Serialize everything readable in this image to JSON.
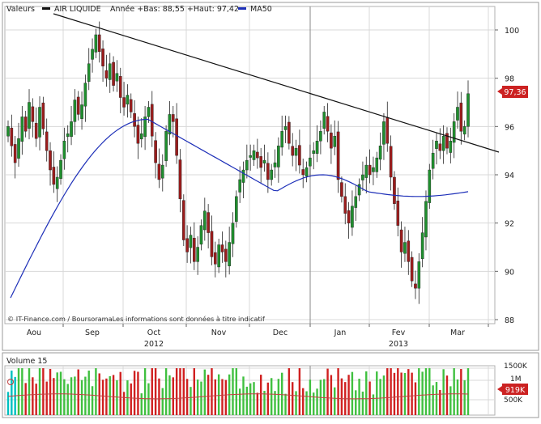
{
  "legend": {
    "valeurs_label": "Valeurs",
    "instrument": "AIR LIQUIDE",
    "range_text": "Année +Bas: 88,55 +Haut: 97,42",
    "ma_label": "MA50"
  },
  "colors": {
    "up": "#1f8f2e",
    "down": "#9b1c1c",
    "ma_line": "#1d2fb8",
    "trend_line": "#111111",
    "vol_up": "#40c040",
    "vol_down": "#d02020",
    "vol_flat": "#00c0c0",
    "vol_ma": "#c04040",
    "grid": "#d8d8d8",
    "badge": "#cc2222"
  },
  "last_price_label": "97,36",
  "footer": {
    "source": "© IT-Finance.com / BoursoramaLes informations sont données à titre indicatif"
  },
  "volume": {
    "label": "Volume 15",
    "badge": "919K",
    "ticks": [
      "1500K",
      "1M",
      "500K"
    ]
  },
  "chart_data": [
    {
      "type": "candlestick",
      "title": "AIR LIQUIDE",
      "ylim": [
        88,
        101
      ],
      "y_ticks": [
        88,
        90,
        92,
        94,
        96,
        98,
        100
      ],
      "x_labels": [
        "Aou",
        "Sep",
        "Oct",
        "Nov",
        "Dec",
        "Jan",
        "Fev",
        "Mar"
      ],
      "year_labels": [
        "2012",
        "2013"
      ],
      "grid": true,
      "last_value": 97.36,
      "low": 88.55,
      "high": 97.42,
      "close_series": [
        96.0,
        95.2,
        94.5,
        95.5,
        96.4,
        95.8,
        97.0,
        96.2,
        95.5,
        96.8,
        95.9,
        95.0,
        94.2,
        93.6,
        93.9,
        94.6,
        95.4,
        95.7,
        96.2,
        97.1,
        96.5,
        96.9,
        97.8,
        98.6,
        99.2,
        99.8,
        99.1,
        98.5,
        98.0,
        98.6,
        97.7,
        98.2,
        97.2,
        96.8,
        97.3,
        96.6,
        96.0,
        95.3,
        95.7,
        96.4,
        96.8,
        95.6,
        94.5,
        93.8,
        94.4,
        95.8,
        96.5,
        96.2,
        94.8,
        93.0,
        91.3,
        90.8,
        91.5,
        90.4,
        91.0,
        91.9,
        92.5,
        91.6,
        90.6,
        90.3,
        91.1,
        90.8,
        90.4,
        91.2,
        92.0,
        93.1,
        93.8,
        94.2,
        94.6,
        94.8,
        95.0,
        94.7,
        94.3,
        94.6,
        93.8,
        94.2,
        94.5,
        95.2,
        95.8,
        96.0,
        95.3,
        94.8,
        95.1,
        94.4,
        94.0,
        94.3,
        94.7,
        95.0,
        95.4,
        95.8,
        96.6,
        95.8,
        95.1,
        95.6,
        93.8,
        93.1,
        92.4,
        92.0,
        92.7,
        93.1,
        93.6,
        94.0,
        94.4,
        94.0,
        94.3,
        94.7,
        95.2,
        96.2,
        95.3,
        93.9,
        92.8,
        91.9,
        90.8,
        91.2,
        90.4,
        89.6,
        89.3,
        90.4,
        91.6,
        92.9,
        94.2,
        94.9,
        95.4,
        95.0,
        95.6,
        95.1,
        95.4,
        96.2,
        96.8,
        95.8,
        96.0,
        97.36
      ]
    },
    {
      "type": "line",
      "name": "MA50",
      "y_start_end": [
        88.9,
        93.3
      ]
    },
    {
      "type": "bar",
      "title": "Volume 15",
      "y_ticks": [
        "1500K",
        "1M",
        "500K"
      ],
      "last_value": "919K"
    }
  ]
}
